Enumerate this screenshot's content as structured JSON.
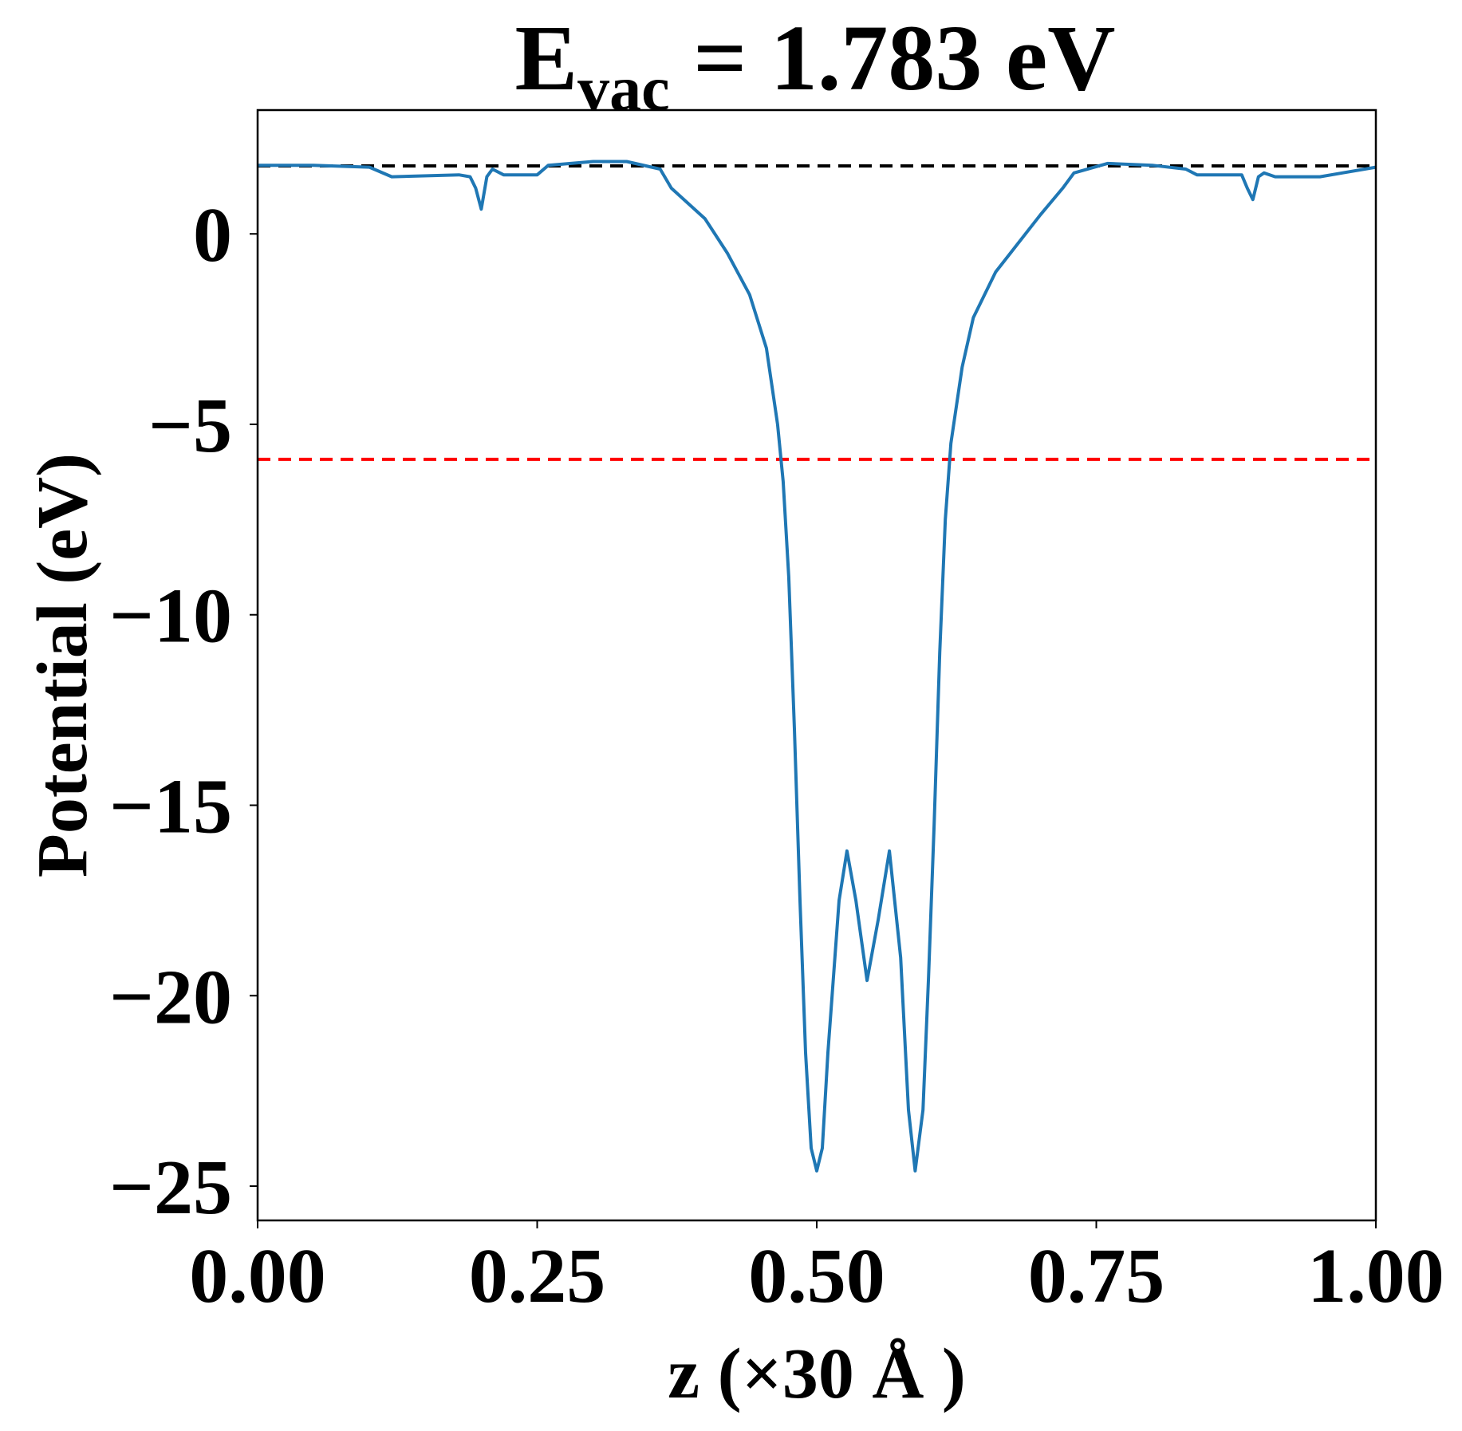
{
  "chart_data": {
    "type": "line",
    "title": {
      "main": "E",
      "sub": "vac",
      "rest": " = 1.783 eV"
    },
    "x_label": "z (×30 Å )",
    "y_label": "Potential (eV)",
    "xlim": [
      0,
      1
    ],
    "ylim": [
      -25.9,
      3.25
    ],
    "xticks": [
      {
        "value": 0,
        "label": "0.00"
      },
      {
        "value": 0.25,
        "label": "0.25"
      },
      {
        "value": 0.5,
        "label": "0.50"
      },
      {
        "value": 0.75,
        "label": "0.75"
      },
      {
        "value": 1,
        "label": "1.00"
      }
    ],
    "yticks": [
      {
        "value": -25,
        "label": "−25"
      },
      {
        "value": -20,
        "label": "−20"
      },
      {
        "value": -15,
        "label": "−15"
      },
      {
        "value": -10,
        "label": "−10"
      },
      {
        "value": -5,
        "label": "−5"
      },
      0
    ],
    "hlines": [
      {
        "value": 1.783,
        "color": "#000000"
      },
      {
        "value": -5.92,
        "color": "#ff0000"
      }
    ],
    "series": [
      {
        "color": "#1f77b4",
        "x": [
          0,
          0.05,
          0.1,
          0.12,
          0.18,
          0.19,
          0.195,
          0.2,
          0.205,
          0.21,
          0.22,
          0.25,
          0.26,
          0.3,
          0.33,
          0.36,
          0.37,
          0.4,
          0.42,
          0.44,
          0.455,
          0.465,
          0.47,
          0.475,
          0.48,
          0.485,
          0.49,
          0.495,
          0.5,
          0.505,
          0.51,
          0.52,
          0.527,
          0.535,
          0.545,
          0.555,
          0.565,
          0.575,
          0.582,
          0.588,
          0.595,
          0.6,
          0.605,
          0.61,
          0.615,
          0.62,
          0.63,
          0.64,
          0.66,
          0.7,
          0.72,
          0.73,
          0.76,
          0.8,
          0.83,
          0.84,
          0.88,
          0.885,
          0.89,
          0.895,
          0.9,
          0.91,
          0.95,
          0.97,
          1
        ],
        "values": [
          1.8,
          1.8,
          1.75,
          1.5,
          1.55,
          1.5,
          1.2,
          0.65,
          1.5,
          1.7,
          1.55,
          1.55,
          1.8,
          1.9,
          1.9,
          1.7,
          1.2,
          0.4,
          -0.5,
          -1.6,
          -3.0,
          -5.0,
          -6.5,
          -9,
          -13,
          -17.5,
          -21.5,
          -24,
          -24.6,
          -24,
          -21.5,
          -17.5,
          -16.2,
          -17.5,
          -19.6,
          -18,
          -16.2,
          -19,
          -23,
          -24.6,
          -23,
          -19.5,
          -15.5,
          -11,
          -7.5,
          -5.5,
          -3.5,
          -2.2,
          -1.0,
          0.5,
          1.2,
          1.6,
          1.85,
          1.8,
          1.7,
          1.55,
          1.55,
          1.2,
          0.9,
          1.5,
          1.6,
          1.5,
          1.5,
          1.6,
          1.75
        ]
      }
    ]
  }
}
